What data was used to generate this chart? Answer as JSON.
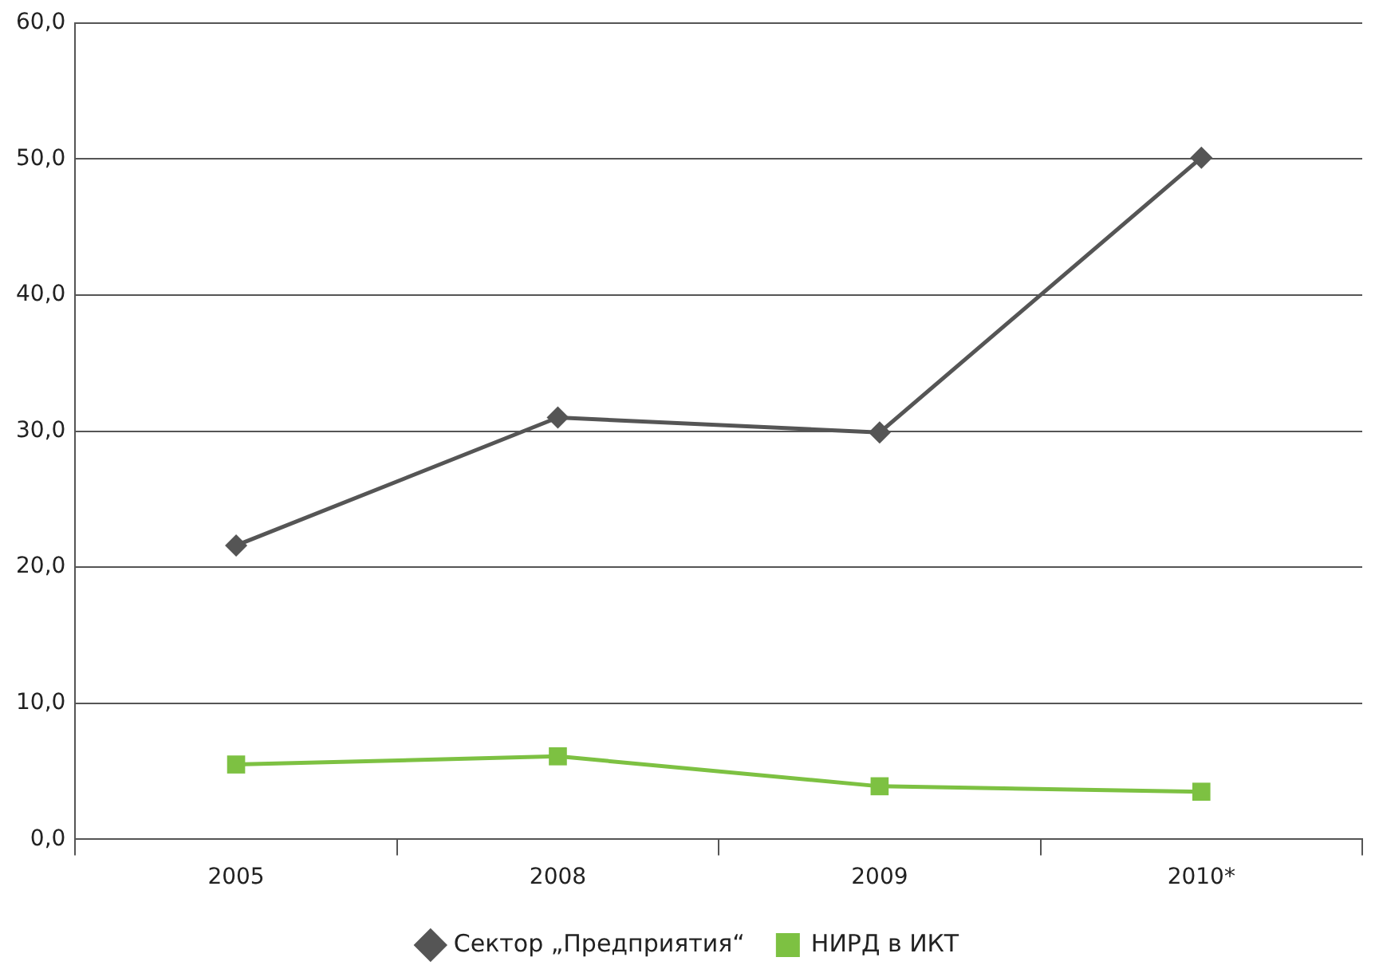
{
  "chart_data": {
    "type": "line",
    "categories": [
      "2005",
      "2008",
      "2009",
      "2010*"
    ],
    "series": [
      {
        "name": "Сектор „Предприятия“",
        "color": "#555555",
        "marker": "diamond",
        "values": [
          21.6,
          31.0,
          29.9,
          50.1
        ]
      },
      {
        "name": "НИРД в ИКТ",
        "color": "#7dc142",
        "marker": "square",
        "values": [
          5.5,
          6.1,
          3.9,
          3.5
        ]
      }
    ],
    "ylim": [
      0,
      60
    ],
    "yticks": [
      {
        "value": 0,
        "label": "0,0"
      },
      {
        "value": 10,
        "label": "10,0"
      },
      {
        "value": 20,
        "label": "20,0"
      },
      {
        "value": 30,
        "label": "30,0"
      },
      {
        "value": 40,
        "label": "40,0"
      },
      {
        "value": 50,
        "label": "50,0"
      },
      {
        "value": 60,
        "label": "60,0"
      }
    ],
    "grid": "y",
    "legend": "bottom",
    "line_style": "solid"
  }
}
